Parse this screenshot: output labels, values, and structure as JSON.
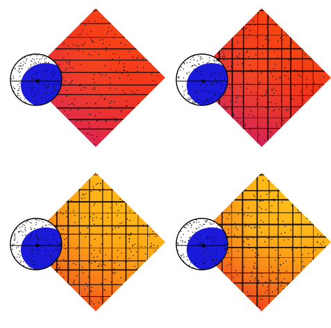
{
  "figure": {
    "panels": [
      {
        "id": "top-left",
        "palette": [
          "#7a22d6",
          "#d81e5a",
          "#f02a1c",
          "#ff5a12"
        ],
        "lines": "horizontal"
      },
      {
        "id": "top-right",
        "palette": [
          "#6b2ce0",
          "#cf1a62",
          "#ee2418",
          "#ff6a10"
        ],
        "lines": "grid"
      },
      {
        "id": "bottom-left",
        "palette": [
          "#c0205a",
          "#f2421a",
          "#ff9a12",
          "#ffd41a"
        ],
        "lines": "grid"
      },
      {
        "id": "bottom-right",
        "palette": [
          "#b81c66",
          "#ee2f1c",
          "#ff9812",
          "#ffe21e"
        ],
        "lines": "grid"
      }
    ],
    "colors": {
      "disc": "#1a1ad8",
      "disc_outline": "#000000",
      "hatched_region": "#ffffff",
      "speckle": "#000000",
      "background": "#ffffff"
    }
  }
}
